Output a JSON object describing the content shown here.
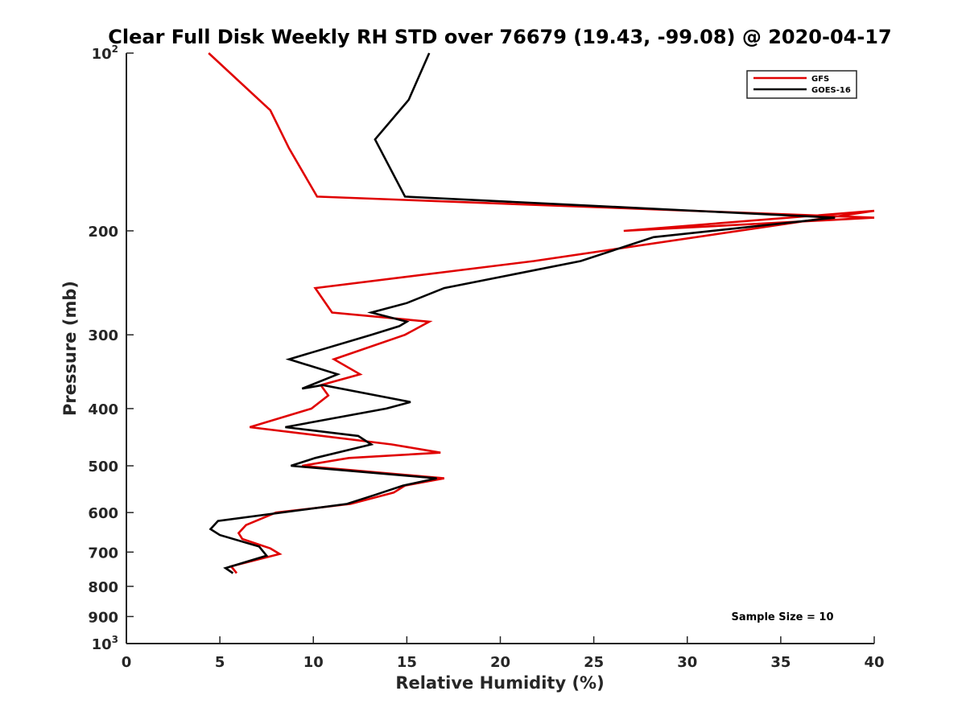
{
  "chart_data": {
    "type": "line",
    "title": "Clear Full Disk Weekly RH STD over 76679 (19.43, -99.08) @ 2020-04-17",
    "xlabel": "Relative Humidity (%)",
    "ylabel": "Pressure (mb)",
    "xlim": [
      0,
      40
    ],
    "ylim": [
      100,
      1000
    ],
    "y_scale": "log",
    "y_reversed": true,
    "grid": false,
    "legend_position": "top-right",
    "x_ticks": [
      0,
      5,
      10,
      15,
      20,
      25,
      30,
      35,
      40
    ],
    "y_ticks": [
      {
        "value": 100,
        "base": "10",
        "exp": "2"
      },
      {
        "value": 200,
        "label": "200"
      },
      {
        "value": 300,
        "label": "300"
      },
      {
        "value": 400,
        "label": "400"
      },
      {
        "value": 500,
        "label": "500"
      },
      {
        "value": 600,
        "label": "600"
      },
      {
        "value": 700,
        "label": "700"
      },
      {
        "value": 800,
        "label": "800"
      },
      {
        "value": 900,
        "label": "900"
      },
      {
        "value": 1000,
        "base": "10",
        "exp": "3"
      }
    ],
    "series": [
      {
        "name": "GFS",
        "color": "#e00000",
        "points": [
          [
            4.4,
            100
          ],
          [
            7.7,
            125
          ],
          [
            8.7,
            145
          ],
          [
            10.2,
            175
          ],
          [
            40,
            190
          ],
          [
            26.6,
            200
          ],
          [
            40,
            185
          ],
          [
            21.8,
            225
          ],
          [
            10.1,
            250
          ],
          [
            11.0,
            275
          ],
          [
            16.2,
            285
          ],
          [
            14.9,
            300
          ],
          [
            11.1,
            330
          ],
          [
            12.5,
            350
          ],
          [
            10.4,
            365
          ],
          [
            10.8,
            380
          ],
          [
            9.9,
            400
          ],
          [
            6.6,
            430
          ],
          [
            14.2,
            460
          ],
          [
            16.8,
            475
          ],
          [
            11.9,
            485
          ],
          [
            9.4,
            500
          ],
          [
            17.0,
            525
          ],
          [
            14.9,
            540
          ],
          [
            14.3,
            555
          ],
          [
            12.0,
            580
          ],
          [
            8.0,
            600
          ],
          [
            6.4,
            630
          ],
          [
            6.0,
            650
          ],
          [
            6.2,
            665
          ],
          [
            7.7,
            690
          ],
          [
            8.2,
            705
          ],
          [
            5.6,
            740
          ],
          [
            5.9,
            760
          ]
        ]
      },
      {
        "name": "GOES-16",
        "color": "#000000",
        "points": [
          [
            16.2,
            100
          ],
          [
            15.1,
            120
          ],
          [
            13.3,
            140
          ],
          [
            14.9,
            175
          ],
          [
            37.9,
            190
          ],
          [
            28.2,
            205
          ],
          [
            24.3,
            225
          ],
          [
            17.0,
            250
          ],
          [
            15.0,
            265
          ],
          [
            13.1,
            275
          ],
          [
            15.0,
            285
          ],
          [
            14.6,
            290
          ],
          [
            13.1,
            300
          ],
          [
            8.7,
            330
          ],
          [
            11.3,
            350
          ],
          [
            9.4,
            370
          ],
          [
            10.5,
            365
          ],
          [
            15.2,
            390
          ],
          [
            13.9,
            400
          ],
          [
            8.5,
            430
          ],
          [
            12.4,
            445
          ],
          [
            13.1,
            460
          ],
          [
            10.1,
            485
          ],
          [
            8.8,
            500
          ],
          [
            16.6,
            525
          ],
          [
            14.8,
            540
          ],
          [
            13.3,
            560
          ],
          [
            11.8,
            580
          ],
          [
            4.9,
            620
          ],
          [
            4.5,
            640
          ],
          [
            5.0,
            655
          ],
          [
            7.1,
            685
          ],
          [
            7.5,
            710
          ],
          [
            5.3,
            745
          ],
          [
            5.7,
            760
          ]
        ]
      }
    ],
    "annotation": "Sample Size = 10"
  }
}
